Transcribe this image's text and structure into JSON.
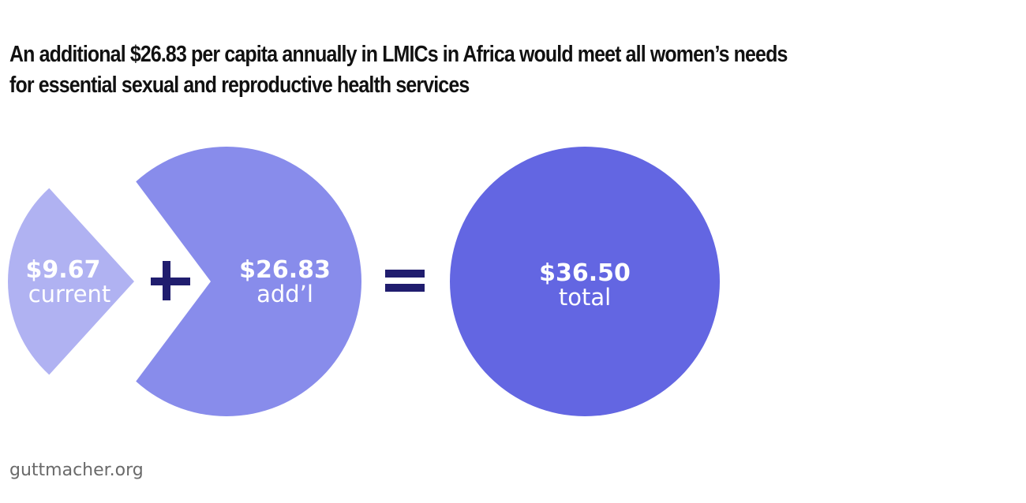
{
  "title_lines": [
    "An additional $26.83 per capita annually in LMICs in Africa would meet all women’s needs",
    "for essential sexual and reproductive health services"
  ],
  "source": "guttmacher.org",
  "chart_data": {
    "type": "pie",
    "title": "An additional $26.83 per capita annually in LMICs in Africa would meet all women’s needs for essential sexual and reproductive health services",
    "slices": [
      {
        "label": "current",
        "value": 9.67,
        "value_label": "$9.67",
        "color": "#b0b2f2"
      },
      {
        "label": "add’l",
        "value": 26.83,
        "value_label": "$26.83",
        "color": "#888ceb"
      }
    ],
    "total": {
      "label": "total",
      "value": 36.5,
      "value_label": "$36.50",
      "color": "#6366e2"
    },
    "operators": {
      "plus": "+",
      "equals": "=",
      "color": "#201d6e"
    }
  }
}
